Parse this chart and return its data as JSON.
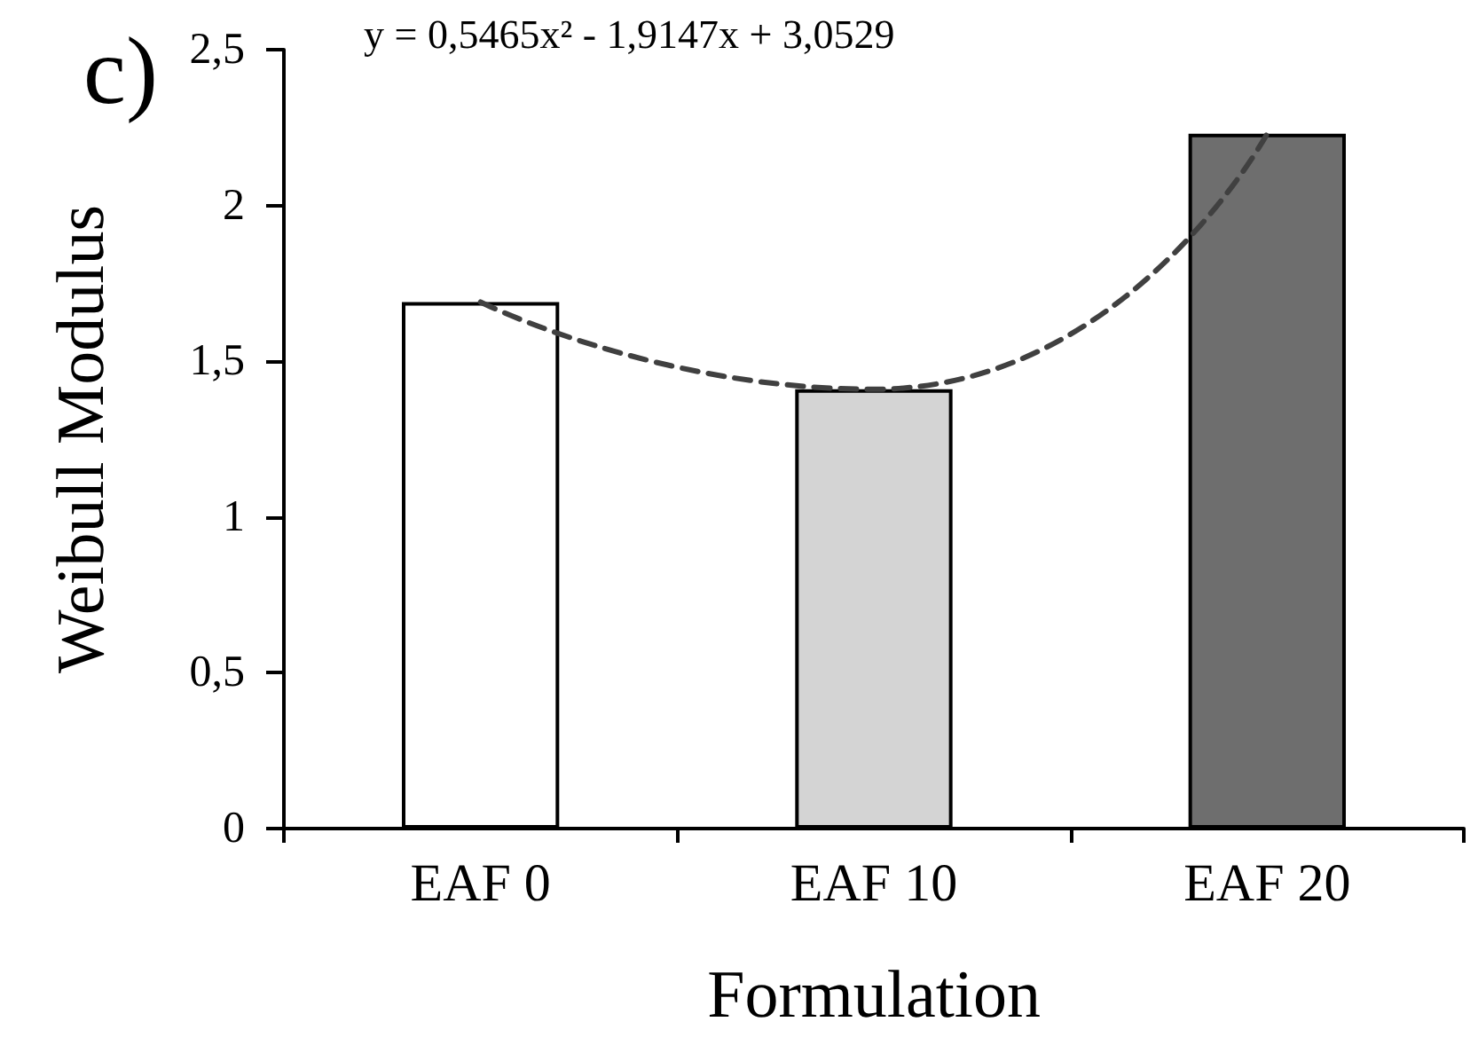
{
  "chart_data": {
    "type": "bar",
    "title": "c)",
    "xlabel": "Formulation",
    "ylabel": "Weibull Modulus",
    "annotations": [
      "y = 0,5465x² - 1,9147x + 3,0529"
    ],
    "categories": [
      "EAF 0",
      "EAF 10",
      "EAF 20"
    ],
    "series": [
      {
        "values": [
          1.69,
          1.41,
          2.23
        ],
        "colors": [
          "#ffffff",
          "#d4d4d4",
          "#6e6e6e"
        ]
      },
      {
        "type": "line",
        "color": "#404040",
        "line_style": "dashed",
        "marker": "none",
        "values": [
          1.69,
          1.41,
          2.23
        ]
      }
    ],
    "ylim": [
      0,
      2.5
    ],
    "yticks": [
      0,
      {
        "value": 0.5,
        "label": "0,5"
      },
      1,
      {
        "value": 1.5,
        "label": "1,5"
      },
      2,
      {
        "value": 2.5,
        "label": "2,5"
      }
    ],
    "grid": false
  }
}
